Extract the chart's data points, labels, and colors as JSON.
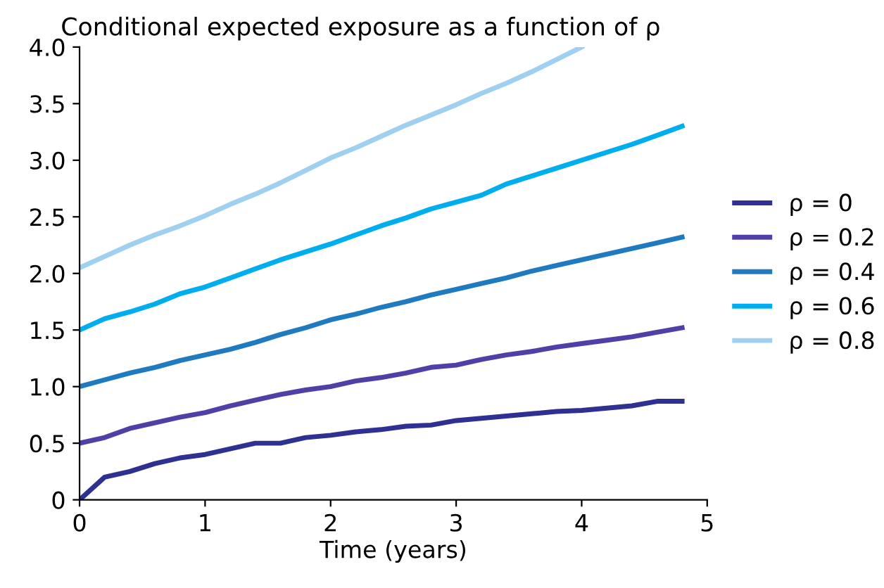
{
  "chart_data": {
    "type": "line",
    "title": "Conditional expected exposure as a function of ρ",
    "xlabel": "Time (years)",
    "x": [
      0,
      0.2,
      0.4,
      0.6,
      0.8,
      1.0,
      1.2,
      1.4,
      1.6,
      1.8,
      2.0,
      2.2,
      2.4,
      2.6,
      2.8,
      3.0,
      3.2,
      3.4,
      3.6,
      3.8,
      4.0,
      4.2,
      4.4,
      4.6,
      4.8
    ],
    "series": [
      {
        "name": "ρ = 0",
        "color": "#2e3192",
        "values": [
          0,
          0.2,
          0.25,
          0.32,
          0.37,
          0.4,
          0.45,
          0.5,
          0.5,
          0.55,
          0.57,
          0.6,
          0.62,
          0.65,
          0.66,
          0.7,
          0.72,
          0.74,
          0.76,
          0.78,
          0.79,
          0.81,
          0.83,
          0.87,
          0.87
        ]
      },
      {
        "name": "ρ = 0.2",
        "color": "#4f3fa6",
        "values": [
          0.5,
          0.55,
          0.63,
          0.68,
          0.73,
          0.77,
          0.83,
          0.88,
          0.93,
          0.97,
          1.0,
          1.05,
          1.08,
          1.12,
          1.17,
          1.19,
          1.24,
          1.28,
          1.31,
          1.35,
          1.38,
          1.41,
          1.44,
          1.48,
          1.52
        ]
      },
      {
        "name": "ρ = 0.4",
        "color": "#1f7ac0",
        "values": [
          1.0,
          1.06,
          1.12,
          1.17,
          1.23,
          1.28,
          1.33,
          1.39,
          1.46,
          1.52,
          1.59,
          1.64,
          1.7,
          1.75,
          1.81,
          1.86,
          1.91,
          1.96,
          2.02,
          2.07,
          2.12,
          2.17,
          2.22,
          2.27,
          2.32
        ]
      },
      {
        "name": "ρ = 0.6",
        "color": "#00aeef",
        "values": [
          1.5,
          1.6,
          1.66,
          1.73,
          1.82,
          1.88,
          1.96,
          2.04,
          2.12,
          2.19,
          2.26,
          2.34,
          2.42,
          2.49,
          2.57,
          2.63,
          2.69,
          2.79,
          2.86,
          2.93,
          3.0,
          3.07,
          3.14,
          3.22,
          3.3
        ]
      },
      {
        "name": "ρ = 0.8",
        "color": "#9fd0ef",
        "x": [
          0,
          0.2,
          0.4,
          0.6,
          0.8,
          1.0,
          1.2,
          1.4,
          1.6,
          1.8,
          2.0,
          2.2,
          2.4,
          2.6,
          2.8,
          3.0,
          3.2,
          3.4,
          3.6,
          3.8,
          4.0
        ],
        "values": [
          2.05,
          2.15,
          2.25,
          2.34,
          2.42,
          2.51,
          2.61,
          2.7,
          2.8,
          2.91,
          3.02,
          3.11,
          3.21,
          3.31,
          3.4,
          3.49,
          3.59,
          3.68,
          3.78,
          3.89,
          4.0
        ]
      }
    ],
    "xlim": [
      0,
      5
    ],
    "xticks": [
      0,
      1,
      2,
      3,
      4,
      5
    ],
    "ylim": [
      0,
      4
    ],
    "yticks": [
      0,
      {
        "value": 0.5,
        "label": "0.5"
      },
      {
        "value": 1,
        "label": "1.0"
      },
      {
        "value": 1.5,
        "label": "1.5"
      },
      {
        "value": 2,
        "label": "2.0"
      },
      {
        "value": 2.5,
        "label": "2.5"
      },
      {
        "value": 3,
        "label": "3.0"
      },
      {
        "value": 3.5,
        "label": "3.5"
      },
      {
        "value": 4,
        "label": "4.0"
      }
    ],
    "legend": "right",
    "grid": false
  }
}
